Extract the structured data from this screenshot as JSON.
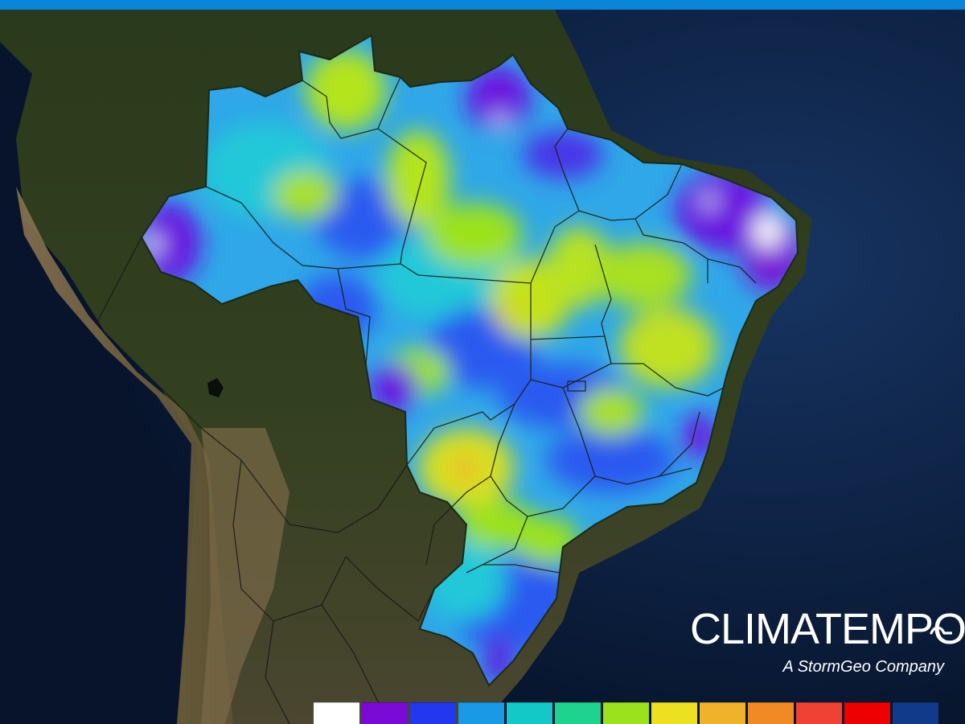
{
  "brand": {
    "name": "CLIMATEMPO",
    "tagline": "A StormGeo Company",
    "logo_icon": "wave-dash-icon",
    "text_color": "#ffffff"
  },
  "header_bar": {
    "color": "#0a86d8"
  },
  "map": {
    "region": "South America",
    "highlighted_country": "Brazil",
    "layer_type": "gridded-precipitation-anomaly",
    "ocean_color": "#0b1e3f",
    "land_color": "#2f3a20"
  },
  "legend": {
    "labels_shown": false,
    "colors": [
      "#ffffff",
      "#7a0ad6",
      "#2437f0",
      "#1a9ae6",
      "#12c9c7",
      "#1ed48c",
      "#9be21c",
      "#ece020",
      "#efb22a",
      "#f18a25",
      "#ef4234",
      "#ee0000",
      "#123a8a"
    ]
  }
}
